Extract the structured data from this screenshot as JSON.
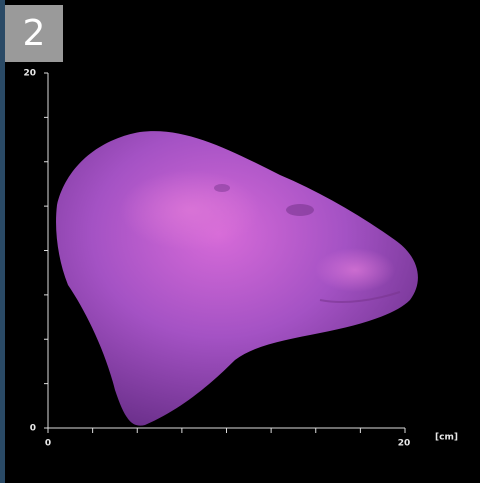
{
  "panel_label": "2",
  "y_axis": {
    "max_label": "20",
    "min_label": "0"
  },
  "x_axis": {
    "min_label": "0",
    "max_label": "20",
    "unit": "[cm]"
  }
}
